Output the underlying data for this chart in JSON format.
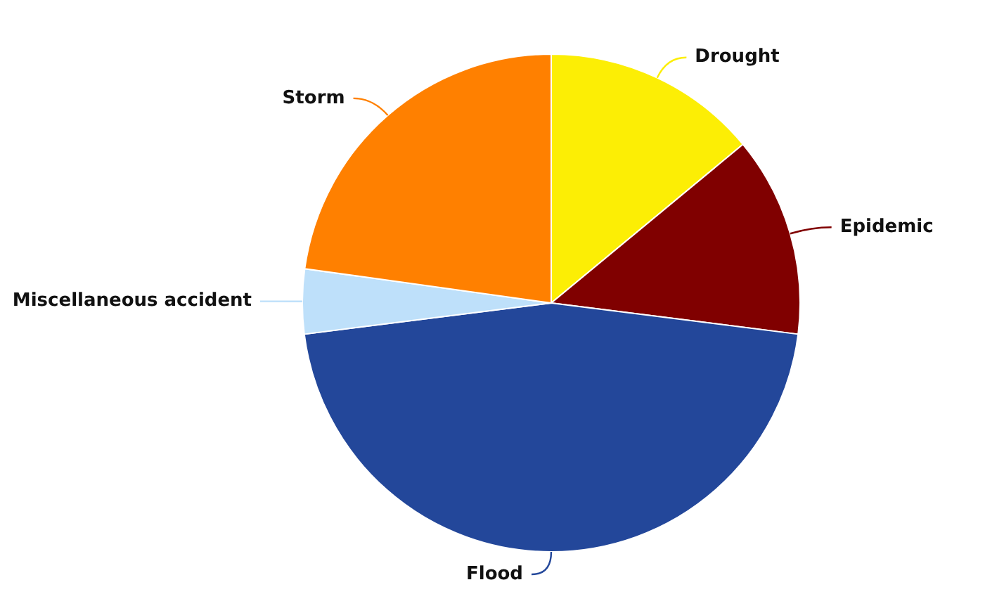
{
  "chart_data": {
    "type": "pie",
    "categories": [
      "Drought",
      "Epidemic",
      "Flood",
      "Miscellaneous accident",
      "Storm"
    ],
    "values": [
      14,
      13,
      46,
      4.2,
      22.8
    ],
    "colors": [
      "#fcee05",
      "#800000",
      "#23479a",
      "#bee0fa",
      "#ff8000"
    ],
    "legend": false
  }
}
